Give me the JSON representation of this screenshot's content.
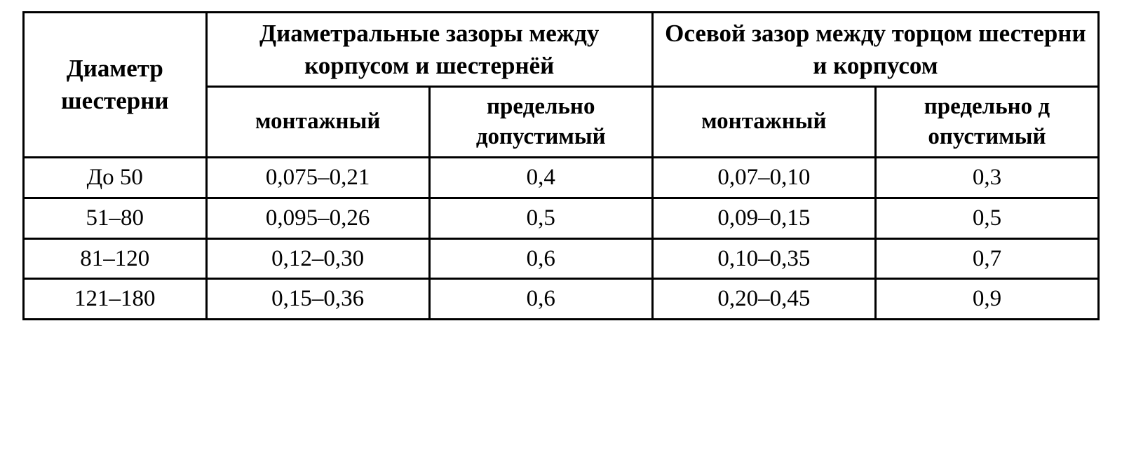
{
  "table": {
    "type": "table",
    "border_color": "#000000",
    "background_color": "#ffffff",
    "text_color": "#000000",
    "font_family": "Times New Roman",
    "header_fontsize_top": 35,
    "header_fontsize_sub": 33,
    "data_fontsize": 33,
    "column_widths_pct": [
      17,
      20.75,
      20.75,
      20.75,
      20.75
    ],
    "headers": {
      "diameter": "Диаметр шестерни",
      "diametral_group": "Диаметральные зазоры между корпусом и шестернёй",
      "axial_group": "Осевой зазор между торцом шестерни и корпусом",
      "diametral_mounting": "монтажный",
      "diametral_limit": "предельно допустимый",
      "axial_mounting": "монтажный",
      "axial_limit": "предельно д опустимый"
    },
    "rows": [
      {
        "diameter": "До 50",
        "dm": "0,075–0,21",
        "dl": "0,4",
        "am": "0,07–0,10",
        "al": "0,3"
      },
      {
        "diameter": "51–80",
        "dm": "0,095–0,26",
        "dl": "0,5",
        "am": "0,09–0,15",
        "al": "0,5"
      },
      {
        "diameter": "81–120",
        "dm": "0,12–0,30",
        "dl": "0,6",
        "am": "0,10–0,35",
        "al": "0,7"
      },
      {
        "diameter": "121–180",
        "dm": "0,15–0,36",
        "dl": "0,6",
        "am": "0,20–0,45",
        "al": "0,9"
      }
    ]
  }
}
